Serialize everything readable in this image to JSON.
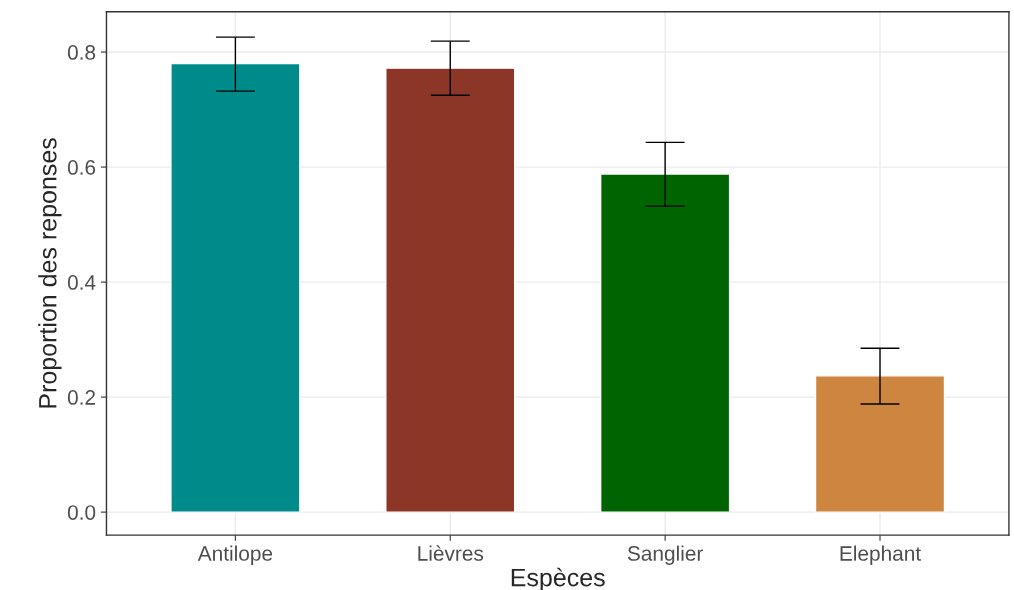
{
  "chart_data": {
    "type": "bar",
    "xlabel": "Espèces",
    "ylabel": "Proportion des reponses",
    "categories": [
      "Antilope",
      "Lièvres",
      "Sanglier",
      "Elephant"
    ],
    "values": [
      0.78,
      0.772,
      0.588,
      0.237
    ],
    "colors": [
      "#008b8b",
      "#8b3626",
      "#006400",
      "#cd853f"
    ],
    "errors": [
      [
        0.732,
        0.826
      ],
      [
        0.725,
        0.819
      ],
      [
        0.532,
        0.643
      ],
      [
        0.188,
        0.285
      ]
    ],
    "ylim": [
      -0.04,
      0.87
    ],
    "yticks": [
      {
        "value": 0,
        "label": "0.0"
      },
      0.2,
      0.4,
      0.6,
      0.8
    ],
    "grid": true
  }
}
